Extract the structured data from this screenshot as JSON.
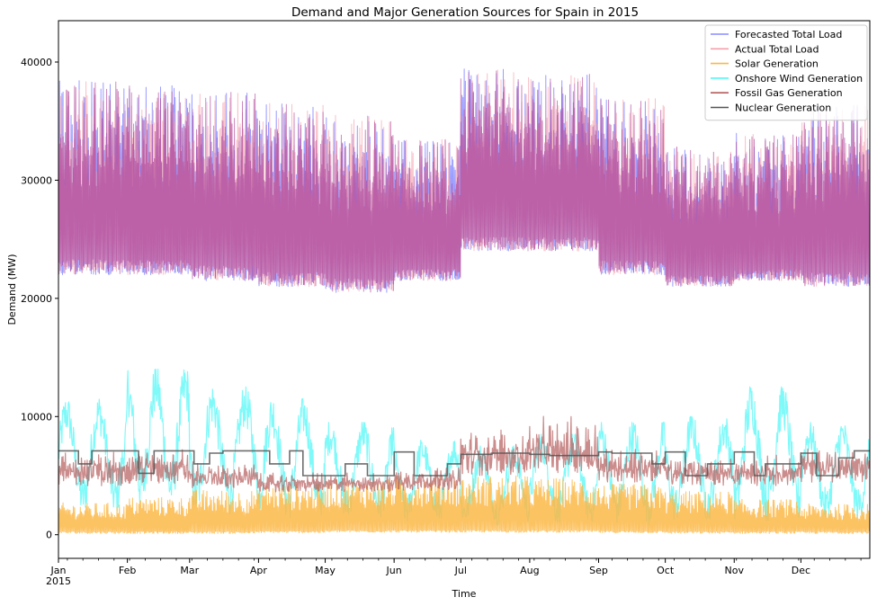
{
  "chart_data": {
    "type": "line",
    "title": "Demand and Major Generation Sources for Spain in 2015",
    "xlabel": "Time",
    "ylabel": "Demand (MW)",
    "ylim": [
      -2000,
      43500
    ],
    "yticks": [
      0,
      10000,
      20000,
      30000,
      40000
    ],
    "x_range": [
      "2015-01-01",
      "2016-01-01"
    ],
    "x_ticks": [
      {
        "date": "2015-01-01",
        "label": "Jan",
        "sublabel": "2015"
      },
      {
        "date": "2015-02-01",
        "label": "Feb"
      },
      {
        "date": "2015-03-01",
        "label": "Mar"
      },
      {
        "date": "2015-04-01",
        "label": "Apr"
      },
      {
        "date": "2015-05-01",
        "label": "May"
      },
      {
        "date": "2015-06-01",
        "label": "Jun"
      },
      {
        "date": "2015-07-01",
        "label": "Jul"
      },
      {
        "date": "2015-08-01",
        "label": "Aug"
      },
      {
        "date": "2015-09-01",
        "label": "Sep"
      },
      {
        "date": "2015-10-01",
        "label": "Oct"
      },
      {
        "date": "2015-11-01",
        "label": "Nov"
      },
      {
        "date": "2015-12-01",
        "label": "Dec"
      }
    ],
    "legend_position": "top-right",
    "grid": false,
    "series": [
      {
        "name": "Forecasted Total Load",
        "color": "#8a8cff",
        "monthly_range": [
          [
            22000,
            38500
          ],
          [
            22000,
            38000
          ],
          [
            21500,
            37500
          ],
          [
            21000,
            36500
          ],
          [
            20500,
            35500
          ],
          [
            21500,
            33500
          ],
          [
            24000,
            39500
          ],
          [
            24000,
            39000
          ],
          [
            22000,
            37000
          ],
          [
            21000,
            33000
          ],
          [
            21500,
            34000
          ],
          [
            21000,
            36500
          ]
        ]
      },
      {
        "name": "Actual Total Load",
        "color": "#f4a0ac",
        "monthly_range": [
          [
            22000,
            38500
          ],
          [
            22000,
            38000
          ],
          [
            21500,
            37500
          ],
          [
            21000,
            36500
          ],
          [
            20500,
            35500
          ],
          [
            21500,
            33500
          ],
          [
            24000,
            39500
          ],
          [
            24000,
            39000
          ],
          [
            22000,
            37000
          ],
          [
            21000,
            33000
          ],
          [
            21500,
            34000
          ],
          [
            21000,
            36500
          ]
        ]
      },
      {
        "name": "Solar Generation",
        "color": "#fbb848",
        "monthly_range": [
          [
            100,
            2700
          ],
          [
            100,
            3200
          ],
          [
            100,
            3800
          ],
          [
            150,
            4300
          ],
          [
            200,
            4700
          ],
          [
            200,
            5000
          ],
          [
            200,
            5000
          ],
          [
            200,
            4800
          ],
          [
            150,
            4300
          ],
          [
            100,
            3700
          ],
          [
            100,
            3000
          ],
          [
            100,
            2600
          ]
        ]
      },
      {
        "name": "Onshore Wind Generation",
        "color": "#55f7f7",
        "monthly_range": [
          [
            1500,
            11500
          ],
          [
            2000,
            14000
          ],
          [
            1500,
            12500
          ],
          [
            1000,
            11500
          ],
          [
            1000,
            9500
          ],
          [
            800,
            8000
          ],
          [
            800,
            7500
          ],
          [
            800,
            8500
          ],
          [
            800,
            9500
          ],
          [
            1000,
            10000
          ],
          [
            1000,
            12500
          ],
          [
            1000,
            9500
          ]
        ]
      },
      {
        "name": "Fossil Gas Generation",
        "color": "#b55b5b",
        "monthly_range": [
          [
            3000,
            7500
          ],
          [
            3000,
            8000
          ],
          [
            3000,
            6500
          ],
          [
            3000,
            5500
          ],
          [
            3000,
            5500
          ],
          [
            3000,
            6000
          ],
          [
            3500,
            9500
          ],
          [
            3500,
            10500
          ],
          [
            3200,
            8000
          ],
          [
            3200,
            7000
          ],
          [
            3200,
            7000
          ],
          [
            3200,
            8000
          ]
        ]
      },
      {
        "name": "Nuclear Generation",
        "color": "#555555",
        "steps": [
          {
            "date": "2015-01-01",
            "value": 7100
          },
          {
            "date": "2015-01-10",
            "value": 6000
          },
          {
            "date": "2015-01-16",
            "value": 7100
          },
          {
            "date": "2015-02-06",
            "value": 5200
          },
          {
            "date": "2015-02-13",
            "value": 7100
          },
          {
            "date": "2015-03-03",
            "value": 6000
          },
          {
            "date": "2015-03-10",
            "value": 6900
          },
          {
            "date": "2015-03-16",
            "value": 7100
          },
          {
            "date": "2015-04-06",
            "value": 6000
          },
          {
            "date": "2015-04-15",
            "value": 7100
          },
          {
            "date": "2015-04-21",
            "value": 5000
          },
          {
            "date": "2015-05-10",
            "value": 6000
          },
          {
            "date": "2015-05-20",
            "value": 5000
          },
          {
            "date": "2015-06-01",
            "value": 7000
          },
          {
            "date": "2015-06-10",
            "value": 5000
          },
          {
            "date": "2015-06-25",
            "value": 6000
          },
          {
            "date": "2015-07-01",
            "value": 6800
          },
          {
            "date": "2015-07-15",
            "value": 6900
          },
          {
            "date": "2015-08-01",
            "value": 6800
          },
          {
            "date": "2015-08-10",
            "value": 6700
          },
          {
            "date": "2015-09-01",
            "value": 7000
          },
          {
            "date": "2015-09-07",
            "value": 6900
          },
          {
            "date": "2015-09-25",
            "value": 6000
          },
          {
            "date": "2015-10-01",
            "value": 7000
          },
          {
            "date": "2015-10-10",
            "value": 5000
          },
          {
            "date": "2015-10-20",
            "value": 6000
          },
          {
            "date": "2015-11-01",
            "value": 7000
          },
          {
            "date": "2015-11-10",
            "value": 5000
          },
          {
            "date": "2015-11-15",
            "value": 6000
          },
          {
            "date": "2015-12-01",
            "value": 6900
          },
          {
            "date": "2015-12-08",
            "value": 5000
          },
          {
            "date": "2015-12-18",
            "value": 6500
          },
          {
            "date": "2015-12-25",
            "value": 7100
          },
          {
            "date": "2016-01-01",
            "value": 7100
          }
        ]
      }
    ]
  }
}
